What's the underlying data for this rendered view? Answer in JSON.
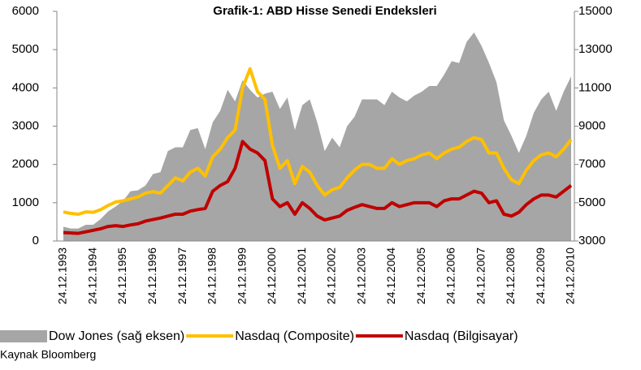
{
  "chart_data": {
    "type": "line",
    "title": "Grafik-1: ABD Hisse Senedi Endeksleri",
    "source": "Kaynak Bloomberg",
    "categories": [
      "24.12.1993",
      null,
      null,
      null,
      "24.12.1994",
      null,
      null,
      null,
      "24.12.1995",
      null,
      null,
      null,
      "24.12.1996",
      null,
      null,
      null,
      "24.12.1997",
      null,
      null,
      null,
      "24.12.1998",
      null,
      null,
      null,
      "24.12.1999",
      null,
      null,
      null,
      "24.12.2000",
      null,
      null,
      null,
      "24.12.2001",
      null,
      null,
      null,
      "24.12.2002",
      null,
      null,
      null,
      "24.12.2003",
      null,
      null,
      null,
      "24.12.2004",
      null,
      null,
      null,
      "24.12.2005",
      null,
      null,
      null,
      "24.12.2006",
      null,
      null,
      null,
      "24.12.2007",
      null,
      null,
      null,
      "24.12.2008",
      null,
      null,
      null,
      "24.12.2009",
      null,
      null,
      null,
      "24.12.2010"
    ],
    "series": [
      {
        "name": "Dow Jones (sağ eksen)",
        "type": "area",
        "axis": "y2",
        "color": "#a6a6a6",
        "values": [
          3750,
          3650,
          3650,
          3850,
          3850,
          4150,
          4550,
          4800,
          5100,
          5600,
          5650,
          5900,
          6500,
          6600,
          7700,
          7900,
          7900,
          8800,
          8900,
          7800,
          9200,
          9800,
          10900,
          10300,
          11400,
          10900,
          10500,
          10700,
          10800,
          9900,
          10500,
          8800,
          10100,
          10400,
          9200,
          7700,
          8400,
          7900,
          9000,
          9500,
          10400,
          10400,
          10400,
          10100,
          10800,
          10500,
          10300,
          10600,
          10800,
          11100,
          11100,
          11700,
          12400,
          12300,
          13400,
          13900,
          13200,
          12300,
          11300,
          9300,
          8500,
          7600,
          8500,
          9700,
          10400,
          10800,
          9800,
          10800,
          11600
        ]
      },
      {
        "name": "Nasdaq (Composite)",
        "type": "line",
        "color": "#ffc000",
        "values": [
          760,
          720,
          700,
          760,
          750,
          820,
          930,
          1020,
          1050,
          1100,
          1150,
          1250,
          1290,
          1250,
          1450,
          1650,
          1570,
          1800,
          1900,
          1700,
          2200,
          2400,
          2700,
          2900,
          4000,
          4500,
          3900,
          3700,
          2500,
          1900,
          2100,
          1500,
          1950,
          1800,
          1450,
          1200,
          1340,
          1400,
          1650,
          1850,
          2000,
          2000,
          1900,
          1900,
          2150,
          2000,
          2100,
          2150,
          2250,
          2300,
          2150,
          2300,
          2400,
          2450,
          2600,
          2700,
          2650,
          2300,
          2300,
          1900,
          1600,
          1500,
          1850,
          2100,
          2250,
          2300,
          2200,
          2400,
          2650
        ]
      },
      {
        "name": "Nasdaq (Bilgisayar)",
        "type": "line",
        "color": "#c00000",
        "values": [
          220,
          210,
          200,
          240,
          280,
          320,
          380,
          400,
          380,
          420,
          450,
          520,
          560,
          600,
          650,
          700,
          700,
          780,
          820,
          850,
          1300,
          1450,
          1550,
          1900,
          2600,
          2400,
          2300,
          2100,
          1100,
          900,
          1000,
          700,
          1000,
          850,
          650,
          550,
          600,
          650,
          800,
          880,
          950,
          900,
          850,
          850,
          1000,
          900,
          950,
          1000,
          1000,
          1000,
          900,
          1050,
          1100,
          1100,
          1200,
          1300,
          1250,
          1000,
          1050,
          700,
          650,
          750,
          950,
          1100,
          1200,
          1200,
          1150,
          1300,
          1450
        ]
      }
    ],
    "ylim": [
      0,
      6000
    ],
    "yticks": [
      0,
      1000,
      2000,
      3000,
      4000,
      5000,
      6000
    ],
    "y2lim": [
      3000,
      15000
    ],
    "y2ticks": [
      3000,
      5000,
      7000,
      9000,
      11000,
      13000,
      15000
    ],
    "grid": false,
    "legend": "bottom"
  }
}
